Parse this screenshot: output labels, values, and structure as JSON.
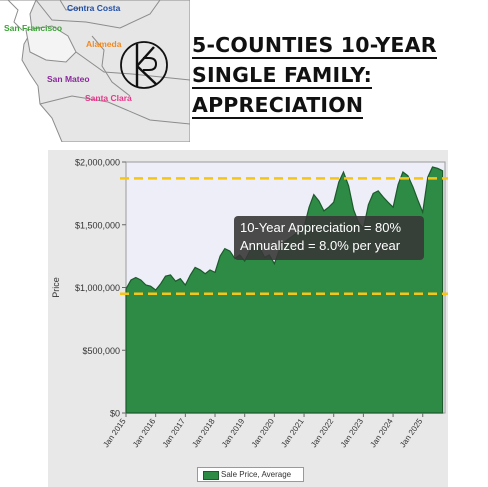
{
  "map": {
    "counties": [
      {
        "name": "Contra Costa",
        "color": "#1f4fa8"
      },
      {
        "name": "San Francisco",
        "color": "#3aa535"
      },
      {
        "name": "Alameda",
        "color": "#f08a24"
      },
      {
        "name": "San Mateo",
        "color": "#8a2a9c"
      },
      {
        "name": "Santa Clara",
        "color": "#e8378a"
      }
    ]
  },
  "title": {
    "line1": "5-COUNTIES 10-YEAR",
    "line2": "SINGLE FAMILY:",
    "line3": "APPRECIATION"
  },
  "annotation": {
    "line1": "10-Year Appreciation = 80%",
    "line2": "Annualized = 8.0% per year"
  },
  "chart_data": {
    "type": "area",
    "ylabel": "Price",
    "ylim": [
      0,
      2000000
    ],
    "yticks": [
      "$0",
      "$500,000",
      "$1,000,000",
      "$1,500,000",
      "$2,000,000"
    ],
    "xlim": [
      2015.0,
      2025.75
    ],
    "xticks": [
      "Jan 2015",
      "Jan 2016",
      "Jan 2017",
      "Jan 2018",
      "Jan 2019",
      "Jan 2020",
      "Jan 2021",
      "Jan 2022",
      "Jan 2023",
      "Jan 2024",
      "Jan 2025"
    ],
    "reference_lines": [
      {
        "value": 1870000,
        "color": "#f5c518",
        "style": "dashed"
      },
      {
        "value": 950000,
        "color": "#f5c518",
        "style": "dashed"
      }
    ],
    "fill_color": "#2e8b45",
    "line_color": "#1c5a2c",
    "plot_background": "#eeeef8",
    "series": [
      {
        "name": "Sale Price, Average",
        "points": [
          [
            2015.0,
            990000
          ],
          [
            2015.17,
            1060000
          ],
          [
            2015.33,
            1080000
          ],
          [
            2015.5,
            1060000
          ],
          [
            2015.67,
            1020000
          ],
          [
            2015.83,
            1010000
          ],
          [
            2016.0,
            980000
          ],
          [
            2016.17,
            1030000
          ],
          [
            2016.33,
            1090000
          ],
          [
            2016.5,
            1100000
          ],
          [
            2016.67,
            1050000
          ],
          [
            2016.83,
            1070000
          ],
          [
            2017.0,
            1020000
          ],
          [
            2017.17,
            1100000
          ],
          [
            2017.33,
            1160000
          ],
          [
            2017.5,
            1140000
          ],
          [
            2017.67,
            1110000
          ],
          [
            2017.83,
            1140000
          ],
          [
            2018.0,
            1120000
          ],
          [
            2018.17,
            1250000
          ],
          [
            2018.33,
            1310000
          ],
          [
            2018.5,
            1290000
          ],
          [
            2018.67,
            1230000
          ],
          [
            2018.83,
            1260000
          ],
          [
            2019.0,
            1210000
          ],
          [
            2019.17,
            1290000
          ],
          [
            2019.33,
            1340000
          ],
          [
            2019.5,
            1320000
          ],
          [
            2019.67,
            1240000
          ],
          [
            2019.83,
            1260000
          ],
          [
            2020.0,
            1190000
          ],
          [
            2020.17,
            1300000
          ],
          [
            2020.33,
            1360000
          ],
          [
            2020.5,
            1390000
          ],
          [
            2020.67,
            1420000
          ],
          [
            2020.83,
            1450000
          ],
          [
            2021.0,
            1480000
          ],
          [
            2021.17,
            1640000
          ],
          [
            2021.33,
            1740000
          ],
          [
            2021.5,
            1690000
          ],
          [
            2021.67,
            1610000
          ],
          [
            2021.83,
            1640000
          ],
          [
            2022.0,
            1680000
          ],
          [
            2022.17,
            1840000
          ],
          [
            2022.33,
            1920000
          ],
          [
            2022.5,
            1810000
          ],
          [
            2022.67,
            1620000
          ],
          [
            2022.83,
            1520000
          ],
          [
            2023.0,
            1470000
          ],
          [
            2023.17,
            1660000
          ],
          [
            2023.33,
            1750000
          ],
          [
            2023.5,
            1770000
          ],
          [
            2023.67,
            1720000
          ],
          [
            2023.83,
            1680000
          ],
          [
            2024.0,
            1640000
          ],
          [
            2024.17,
            1820000
          ],
          [
            2024.33,
            1920000
          ],
          [
            2024.5,
            1890000
          ],
          [
            2024.67,
            1800000
          ],
          [
            2024.83,
            1700000
          ],
          [
            2025.0,
            1600000
          ],
          [
            2025.17,
            1880000
          ],
          [
            2025.33,
            1960000
          ],
          [
            2025.5,
            1950000
          ],
          [
            2025.67,
            1930000
          ]
        ]
      }
    ]
  }
}
